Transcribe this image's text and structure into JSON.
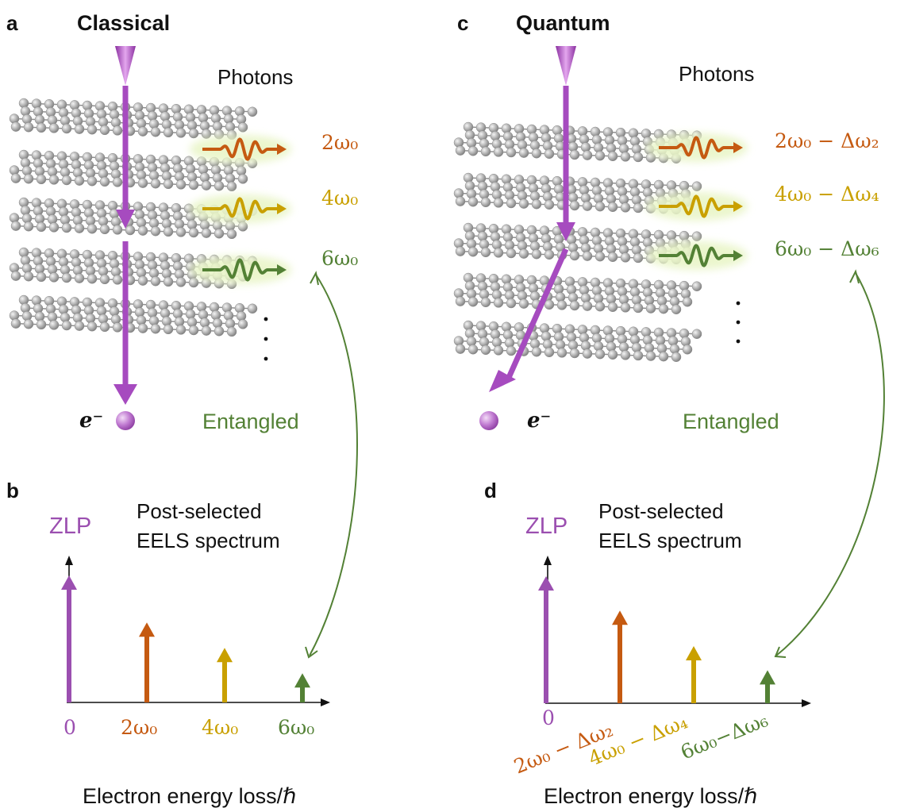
{
  "colors": {
    "electron": "#a64bbf",
    "zlp": "#9b4fb0",
    "order2": "#c55a11",
    "order4": "#c9a000",
    "order6": "#538135",
    "entangled": "#538135",
    "atom": "#a8a8a8"
  },
  "panel_a": {
    "letter": "a",
    "title": "Classical",
    "photons": "Photons",
    "photon_labels": [
      "2ω₀",
      "4ω₀",
      "6ω₀"
    ],
    "electron": "e⁻",
    "entangled": "Entangled"
  },
  "panel_c": {
    "letter": "c",
    "title": "Quantum",
    "photons": "Photons",
    "photon_labels": [
      "2ω₀ − Δω₂",
      "4ω₀ − Δω₄",
      "6ω₀ − Δω₆"
    ],
    "electron": "e⁻",
    "entangled": "Entangled"
  },
  "panel_b": {
    "letter": "b",
    "zlp": "ZLP",
    "spectrum_line1": "Post-selected",
    "spectrum_line2": "EELS spectrum",
    "tick_labels": [
      "0",
      "2ω₀",
      "4ω₀",
      "6ω₀"
    ],
    "xlabel": "Electron energy loss/ℏ"
  },
  "panel_d": {
    "letter": "d",
    "zlp": "ZLP",
    "spectrum_line1": "Post-selected",
    "spectrum_line2": "EELS spectrum",
    "tick_labels": [
      "0",
      "2ω₀ − Δω₂",
      "4ω₀ − Δω₄",
      "6ω₀−Δω₆"
    ],
    "xlabel": "Electron energy loss/ℏ"
  },
  "spectra": {
    "classical_peaks": [
      {
        "label": "0",
        "rel_energy": 0,
        "height": 1.0
      },
      {
        "label": "2ω₀",
        "rel_energy": 2,
        "height": 0.63
      },
      {
        "label": "4ω₀",
        "rel_energy": 4,
        "height": 0.43
      },
      {
        "label": "6ω₀",
        "rel_energy": 6,
        "height": 0.23
      }
    ],
    "quantum_peaks": [
      {
        "label": "0",
        "rel_energy": 0,
        "height": 1.0
      },
      {
        "label": "2ω₀ − Δω₂",
        "rel_energy": 2,
        "height": 0.73
      },
      {
        "label": "4ω₀ − Δω₄",
        "rel_energy": 4,
        "height": 0.45
      },
      {
        "label": "6ω₀−Δω₆",
        "rel_energy": 6,
        "height": 0.26
      }
    ]
  }
}
